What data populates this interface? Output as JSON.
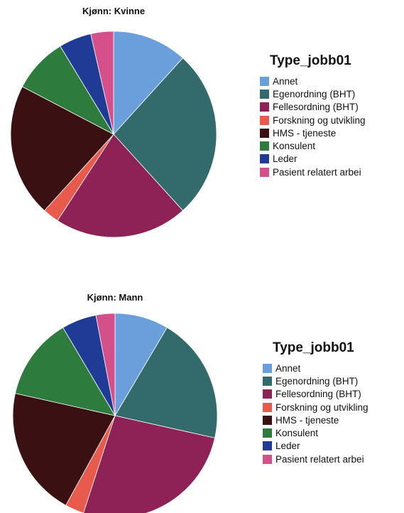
{
  "chart_data": [
    {
      "type": "pie",
      "title": "Kjønn: Kvinne",
      "legend_title": "Type_jobb01",
      "legend_position": "right",
      "start": "12 o'clock",
      "direction": "clockwise",
      "categories": [
        "Annet",
        "Egenordning (BHT)",
        "Fellesordning (BHT)",
        "Forskning og utvikling",
        "HMS - tjeneste",
        "Konsulent",
        "Leder",
        "Pasient relatert arbei"
      ],
      "values": [
        11.5,
        26.0,
        20.5,
        2.5,
        20.5,
        8.5,
        5.0,
        3.5
      ]
    },
    {
      "type": "pie",
      "title": "Kjønn: Mann",
      "legend_title": "Type_jobb01",
      "legend_position": "right",
      "start": "12 o'clock",
      "direction": "clockwise",
      "categories": [
        "Annet",
        "Egenordning (BHT)",
        "Fellesordning (BHT)",
        "Forskning og utvikling",
        "HMS - tjeneste",
        "Konsulent",
        "Leder",
        "Pasient relatert arbei"
      ],
      "values": [
        8.5,
        20.0,
        26.5,
        3.0,
        20.5,
        13.0,
        5.5,
        3.0
      ]
    }
  ],
  "colors": [
    "#6a9fdc",
    "#336a6c",
    "#8e2156",
    "#e85a4c",
    "#3b1012",
    "#2d7b3d",
    "#1f3b95",
    "#d3508a"
  ]
}
